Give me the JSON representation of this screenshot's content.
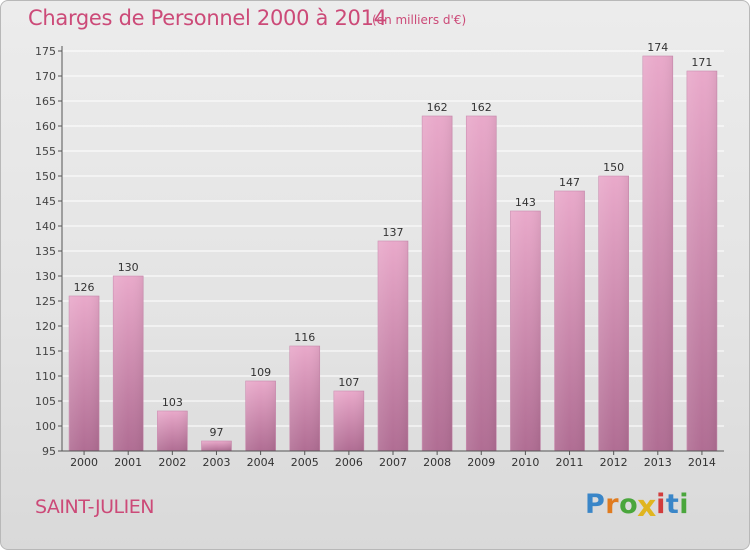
{
  "title": "Charges de Personnel 2000 à 2014",
  "subtitle": "(en milliers d'€)",
  "town": "SAINT-JULIEN",
  "logo": {
    "text": "Proxiti",
    "letters": [
      {
        "char": "P",
        "color": "#3a86c8"
      },
      {
        "char": "r",
        "color": "#e07b1f"
      },
      {
        "char": "o",
        "color": "#4aa63c"
      },
      {
        "char": "x",
        "color": "#e0b51f"
      },
      {
        "char": "i",
        "color": "#d23c3c"
      },
      {
        "char": "t",
        "color": "#3a86c8"
      },
      {
        "char": "i",
        "color": "#4aa63c"
      }
    ]
  },
  "colors": {
    "accent": "#cc4a78",
    "bar_light": "#e9a9ca",
    "bar_dark": "#b06d93",
    "axis": "#555555",
    "grid": "#ffffff"
  },
  "chart_data": {
    "type": "bar",
    "title": "Charges de Personnel 2000 à 2014",
    "subtitle": "(en milliers d'€)",
    "categories": [
      "2000",
      "2001",
      "2002",
      "2003",
      "2004",
      "2005",
      "2006",
      "2007",
      "2008",
      "2009",
      "2010",
      "2011",
      "2012",
      "2013",
      "2014"
    ],
    "values": [
      126,
      130,
      103,
      97,
      109,
      116,
      107,
      137,
      162,
      162,
      143,
      147,
      150,
      174,
      171
    ],
    "ylim": [
      95,
      175
    ],
    "yticks": [
      95,
      100,
      105,
      110,
      115,
      120,
      125,
      130,
      135,
      140,
      145,
      150,
      155,
      160,
      165,
      170,
      175
    ],
    "grid": true,
    "data_labels": true
  }
}
